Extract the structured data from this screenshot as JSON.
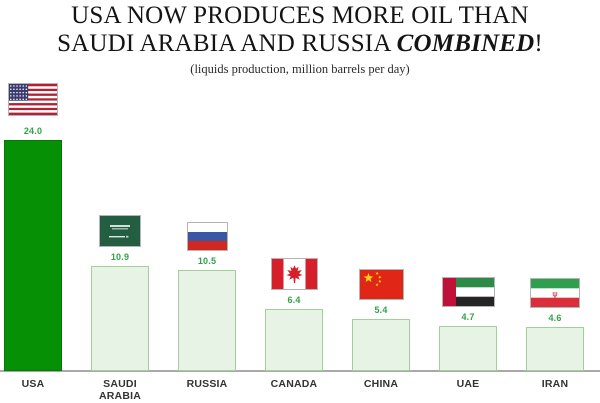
{
  "title": {
    "line1": "USA NOW PRODUCES MORE OIL THAN",
    "line2_prefix": "SAUDI ARABIA AND RUSSIA ",
    "line2_emphasis": "COMBINED",
    "line2_suffix": "!"
  },
  "subtitle": "(liquids production, million barrels per day)",
  "chart_data": {
    "type": "bar",
    "title": "USA NOW PRODUCES MORE OIL THAN SAUDI ARABIA AND RUSSIA COMBINED!",
    "subtitle": "(liquids production, million barrels per day)",
    "categories": [
      "USA",
      "SAUDI ARABIA",
      "RUSSIA",
      "CANADA",
      "CHINA",
      "UAE",
      "IRAN"
    ],
    "values": [
      24.0,
      10.9,
      10.5,
      6.4,
      5.4,
      4.7,
      4.6
    ],
    "value_labels": [
      "24.0",
      "10.9",
      "10.5",
      "6.4",
      "5.4",
      "4.7",
      "4.6"
    ],
    "flags": [
      "usa-flag-icon",
      "saudi-arabia-flag-icon",
      "russia-flag-icon",
      "canada-flag-icon",
      "china-flag-icon",
      "uae-flag-icon",
      "iran-flag-icon"
    ],
    "highlighted_category": "USA",
    "xlabel": "",
    "ylabel": "",
    "ylim": [
      0,
      24
    ],
    "grid": false,
    "legend": false,
    "colors": {
      "highlight_bar": "#059005",
      "bar_fill": "#e7f3e4",
      "bar_border": "#9fd098",
      "value_text": "#31a149",
      "label_text": "#333333",
      "axis_line": "#a9a9a9"
    }
  }
}
